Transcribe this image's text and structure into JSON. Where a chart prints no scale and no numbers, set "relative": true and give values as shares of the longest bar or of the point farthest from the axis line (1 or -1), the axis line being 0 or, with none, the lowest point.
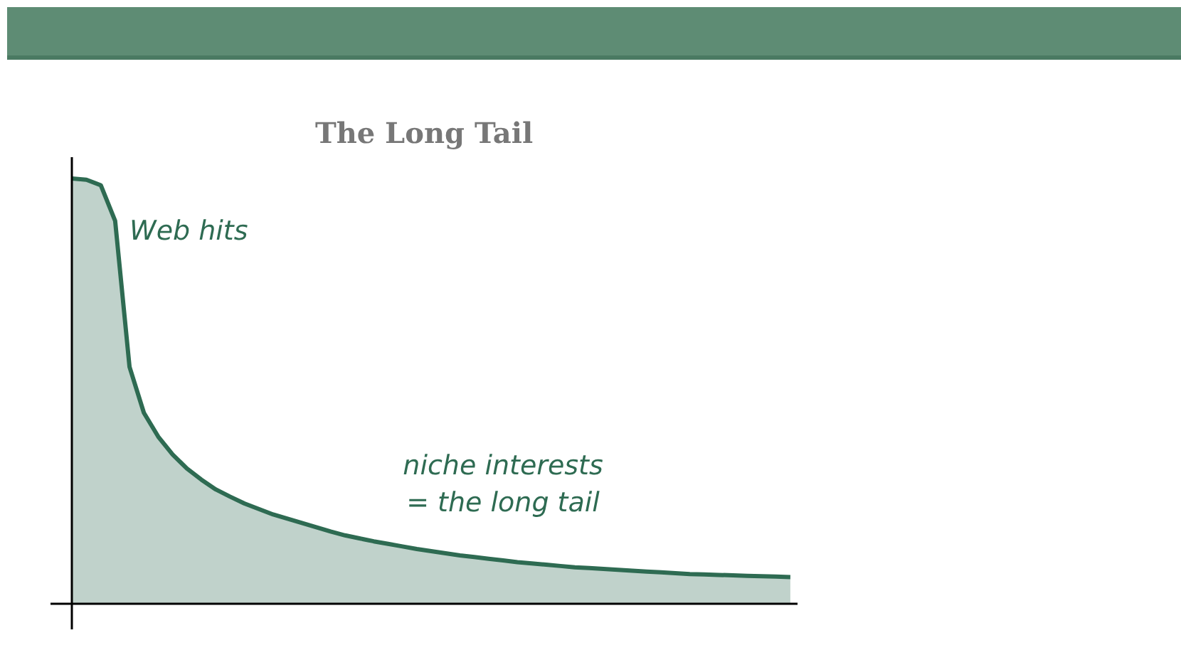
{
  "chart_data": {
    "type": "area",
    "title": "The Long Tail",
    "relative": true,
    "color": "#2e6b52",
    "categories": [
      null,
      null,
      null,
      null,
      null,
      null,
      null,
      null,
      null,
      null,
      null,
      null,
      null,
      null,
      null,
      null,
      null,
      null,
      null,
      null,
      null,
      null,
      null,
      null,
      null,
      null,
      null,
      null,
      null,
      null,
      null,
      null,
      null,
      null,
      null,
      null,
      null,
      null,
      null,
      null,
      null,
      null,
      null,
      null,
      null,
      null,
      null,
      null,
      null,
      null,
      null
    ],
    "values": [
      1.0,
      0.997,
      0.984,
      0.9,
      0.557,
      0.449,
      0.393,
      0.351,
      0.318,
      0.292,
      0.269,
      0.252,
      0.236,
      0.223,
      0.21,
      0.2,
      0.19,
      0.18,
      0.17,
      0.161,
      0.154,
      0.147,
      0.141,
      0.135,
      0.129,
      0.124,
      0.119,
      0.114,
      0.11,
      0.106,
      0.102,
      0.098,
      0.095,
      0.092,
      0.089,
      0.086,
      0.084,
      0.082,
      0.08,
      0.078,
      0.076,
      0.074,
      0.072,
      0.07,
      0.069,
      0.068,
      0.067,
      0.066,
      0.065,
      0.064,
      0.063
    ],
    "annotations": [
      "Web hits",
      "niche interests\n= the long tail"
    ]
  }
}
